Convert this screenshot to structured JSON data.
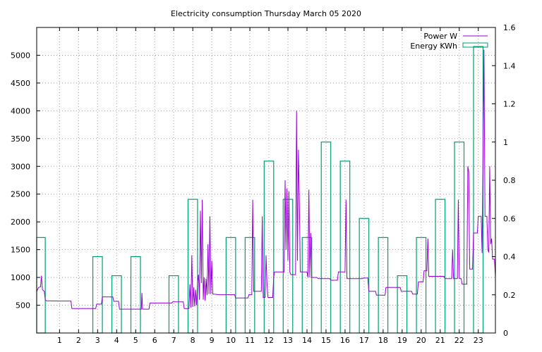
{
  "chart_data": {
    "type": "bar+line",
    "title": "Electricity consumption Thursday March 05 2020",
    "grid": true,
    "legend_position": "top-right",
    "x": {
      "min": -0.2,
      "max": 23.9,
      "ticks": [
        1,
        2,
        3,
        4,
        5,
        6,
        7,
        8,
        9,
        10,
        11,
        12,
        13,
        14,
        15,
        16,
        17,
        18,
        19,
        20,
        21,
        22,
        23
      ]
    },
    "y_left": {
      "min": 0,
      "max": 5500,
      "ticks": [
        500,
        1000,
        1500,
        2000,
        2500,
        3000,
        3500,
        4000,
        4500,
        5000
      ]
    },
    "y_right": {
      "min": 0,
      "max": 1.6,
      "ticks": [
        0,
        0.2,
        0.4,
        0.6,
        0.8,
        1,
        1.2,
        1.4,
        1.6
      ]
    },
    "series": [
      {
        "name": "Power W",
        "type": "line",
        "axis": "left",
        "color": "#9400d3",
        "points": [
          [
            -0.2,
            750
          ],
          [
            -0.1,
            820
          ],
          [
            0.0,
            830
          ],
          [
            0.05,
            1030
          ],
          [
            0.1,
            780
          ],
          [
            0.2,
            750
          ],
          [
            0.25,
            600
          ],
          [
            0.3,
            580
          ],
          [
            1.0,
            575
          ],
          [
            1.6,
            575
          ],
          [
            1.65,
            440
          ],
          [
            2.9,
            440
          ],
          [
            2.95,
            520
          ],
          [
            3.2,
            520
          ],
          [
            3.25,
            650
          ],
          [
            3.8,
            650
          ],
          [
            3.85,
            570
          ],
          [
            4.1,
            570
          ],
          [
            4.15,
            430
          ],
          [
            5.3,
            430
          ],
          [
            5.33,
            720
          ],
          [
            5.36,
            430
          ],
          [
            5.7,
            430
          ],
          [
            5.75,
            540
          ],
          [
            6.9,
            540
          ],
          [
            6.95,
            560
          ],
          [
            7.5,
            560
          ],
          [
            7.55,
            440
          ],
          [
            7.8,
            440
          ],
          [
            7.85,
            880
          ],
          [
            7.9,
            460
          ],
          [
            7.95,
            1400
          ],
          [
            8.0,
            470
          ],
          [
            8.05,
            820
          ],
          [
            8.1,
            480
          ],
          [
            8.15,
            780
          ],
          [
            8.2,
            500
          ],
          [
            8.25,
            900
          ],
          [
            8.3,
            1050
          ],
          [
            8.35,
            600
          ],
          [
            8.4,
            2200
          ],
          [
            8.45,
            900
          ],
          [
            8.5,
            2400
          ],
          [
            8.55,
            600
          ],
          [
            8.6,
            1000
          ],
          [
            8.65,
            580
          ],
          [
            8.7,
            980
          ],
          [
            8.75,
            680
          ],
          [
            8.8,
            1600
          ],
          [
            8.85,
            700
          ],
          [
            8.9,
            2100
          ],
          [
            8.95,
            700
          ],
          [
            9.0,
            1300
          ],
          [
            9.05,
            700
          ],
          [
            9.1,
            700
          ],
          [
            9.4,
            690
          ],
          [
            10.2,
            690
          ],
          [
            10.25,
            630
          ],
          [
            10.9,
            630
          ],
          [
            10.95,
            690
          ],
          [
            11.1,
            690
          ],
          [
            11.15,
            2400
          ],
          [
            11.2,
            750
          ],
          [
            11.6,
            750
          ],
          [
            11.65,
            2100
          ],
          [
            11.7,
            640
          ],
          [
            11.8,
            640
          ],
          [
            11.85,
            1400
          ],
          [
            11.9,
            900
          ],
          [
            11.95,
            640
          ],
          [
            12.2,
            640
          ],
          [
            12.25,
            1000
          ],
          [
            12.3,
            1100
          ],
          [
            12.8,
            1100
          ],
          [
            12.85,
            2750
          ],
          [
            12.9,
            1500
          ],
          [
            12.95,
            2600
          ],
          [
            13.0,
            1300
          ],
          [
            13.05,
            2550
          ],
          [
            13.1,
            1100
          ],
          [
            13.15,
            1050
          ],
          [
            13.4,
            1050
          ],
          [
            13.45,
            4000
          ],
          [
            13.5,
            1300
          ],
          [
            13.55,
            3300
          ],
          [
            13.6,
            2400
          ],
          [
            13.65,
            1100
          ],
          [
            14.0,
            1100
          ],
          [
            14.05,
            1000
          ],
          [
            14.1,
            2580
          ],
          [
            14.15,
            1000
          ],
          [
            14.2,
            1800
          ],
          [
            14.25,
            1000
          ],
          [
            14.5,
            1000
          ],
          [
            14.6,
            980
          ],
          [
            15.2,
            980
          ],
          [
            15.25,
            950
          ],
          [
            15.6,
            950
          ],
          [
            15.65,
            1100
          ],
          [
            16.0,
            1100
          ],
          [
            16.05,
            2400
          ],
          [
            16.1,
            980
          ],
          [
            16.9,
            980
          ],
          [
            16.95,
            990
          ],
          [
            17.2,
            990
          ],
          [
            17.25,
            750
          ],
          [
            17.6,
            750
          ],
          [
            17.65,
            680
          ],
          [
            18.1,
            680
          ],
          [
            18.15,
            820
          ],
          [
            18.9,
            820
          ],
          [
            18.95,
            750
          ],
          [
            19.5,
            750
          ],
          [
            19.55,
            700
          ],
          [
            19.8,
            700
          ],
          [
            19.85,
            920
          ],
          [
            20.1,
            920
          ],
          [
            20.15,
            1120
          ],
          [
            20.3,
            1120
          ],
          [
            20.35,
            1700
          ],
          [
            20.4,
            1020
          ],
          [
            21.2,
            1020
          ],
          [
            21.25,
            980
          ],
          [
            21.6,
            980
          ],
          [
            21.65,
            1500
          ],
          [
            21.7,
            980
          ],
          [
            21.9,
            980
          ],
          [
            21.95,
            2400
          ],
          [
            22.0,
            980
          ],
          [
            22.1,
            980
          ],
          [
            22.15,
            880
          ],
          [
            22.4,
            880
          ],
          [
            22.45,
            3000
          ],
          [
            22.5,
            2900
          ],
          [
            22.55,
            1150
          ],
          [
            22.7,
            1150
          ],
          [
            22.75,
            1800
          ],
          [
            22.95,
            1800
          ],
          [
            23.0,
            2100
          ],
          [
            23.15,
            2100
          ],
          [
            23.2,
            1440
          ],
          [
            23.25,
            3260
          ],
          [
            23.3,
            5100
          ],
          [
            23.35,
            2100
          ],
          [
            23.45,
            2100
          ],
          [
            23.5,
            1500
          ],
          [
            23.55,
            1450
          ],
          [
            23.6,
            3000
          ],
          [
            23.65,
            1600
          ],
          [
            23.7,
            1700
          ],
          [
            23.75,
            1330
          ],
          [
            23.85,
            1330
          ],
          [
            23.9,
            1000
          ]
        ]
      },
      {
        "name": "Energy KWh",
        "type": "bar",
        "axis": "right",
        "color": "#009e73",
        "bar_width": 0.5,
        "categories": [
          0,
          1,
          2,
          3,
          4,
          5,
          6,
          7,
          8,
          9,
          10,
          11,
          12,
          13,
          14,
          15,
          16,
          17,
          18,
          19,
          20,
          21,
          22,
          23
        ],
        "values": [
          0.5,
          0.0,
          0.0,
          0.4,
          0.3,
          0.4,
          0.0,
          0.3,
          0.7,
          0.0,
          0.5,
          0.5,
          0.9,
          0.7,
          0.5,
          1.0,
          0.9,
          0.6,
          0.5,
          0.3,
          0.5,
          0.7,
          1.0,
          1.5
        ]
      }
    ]
  }
}
